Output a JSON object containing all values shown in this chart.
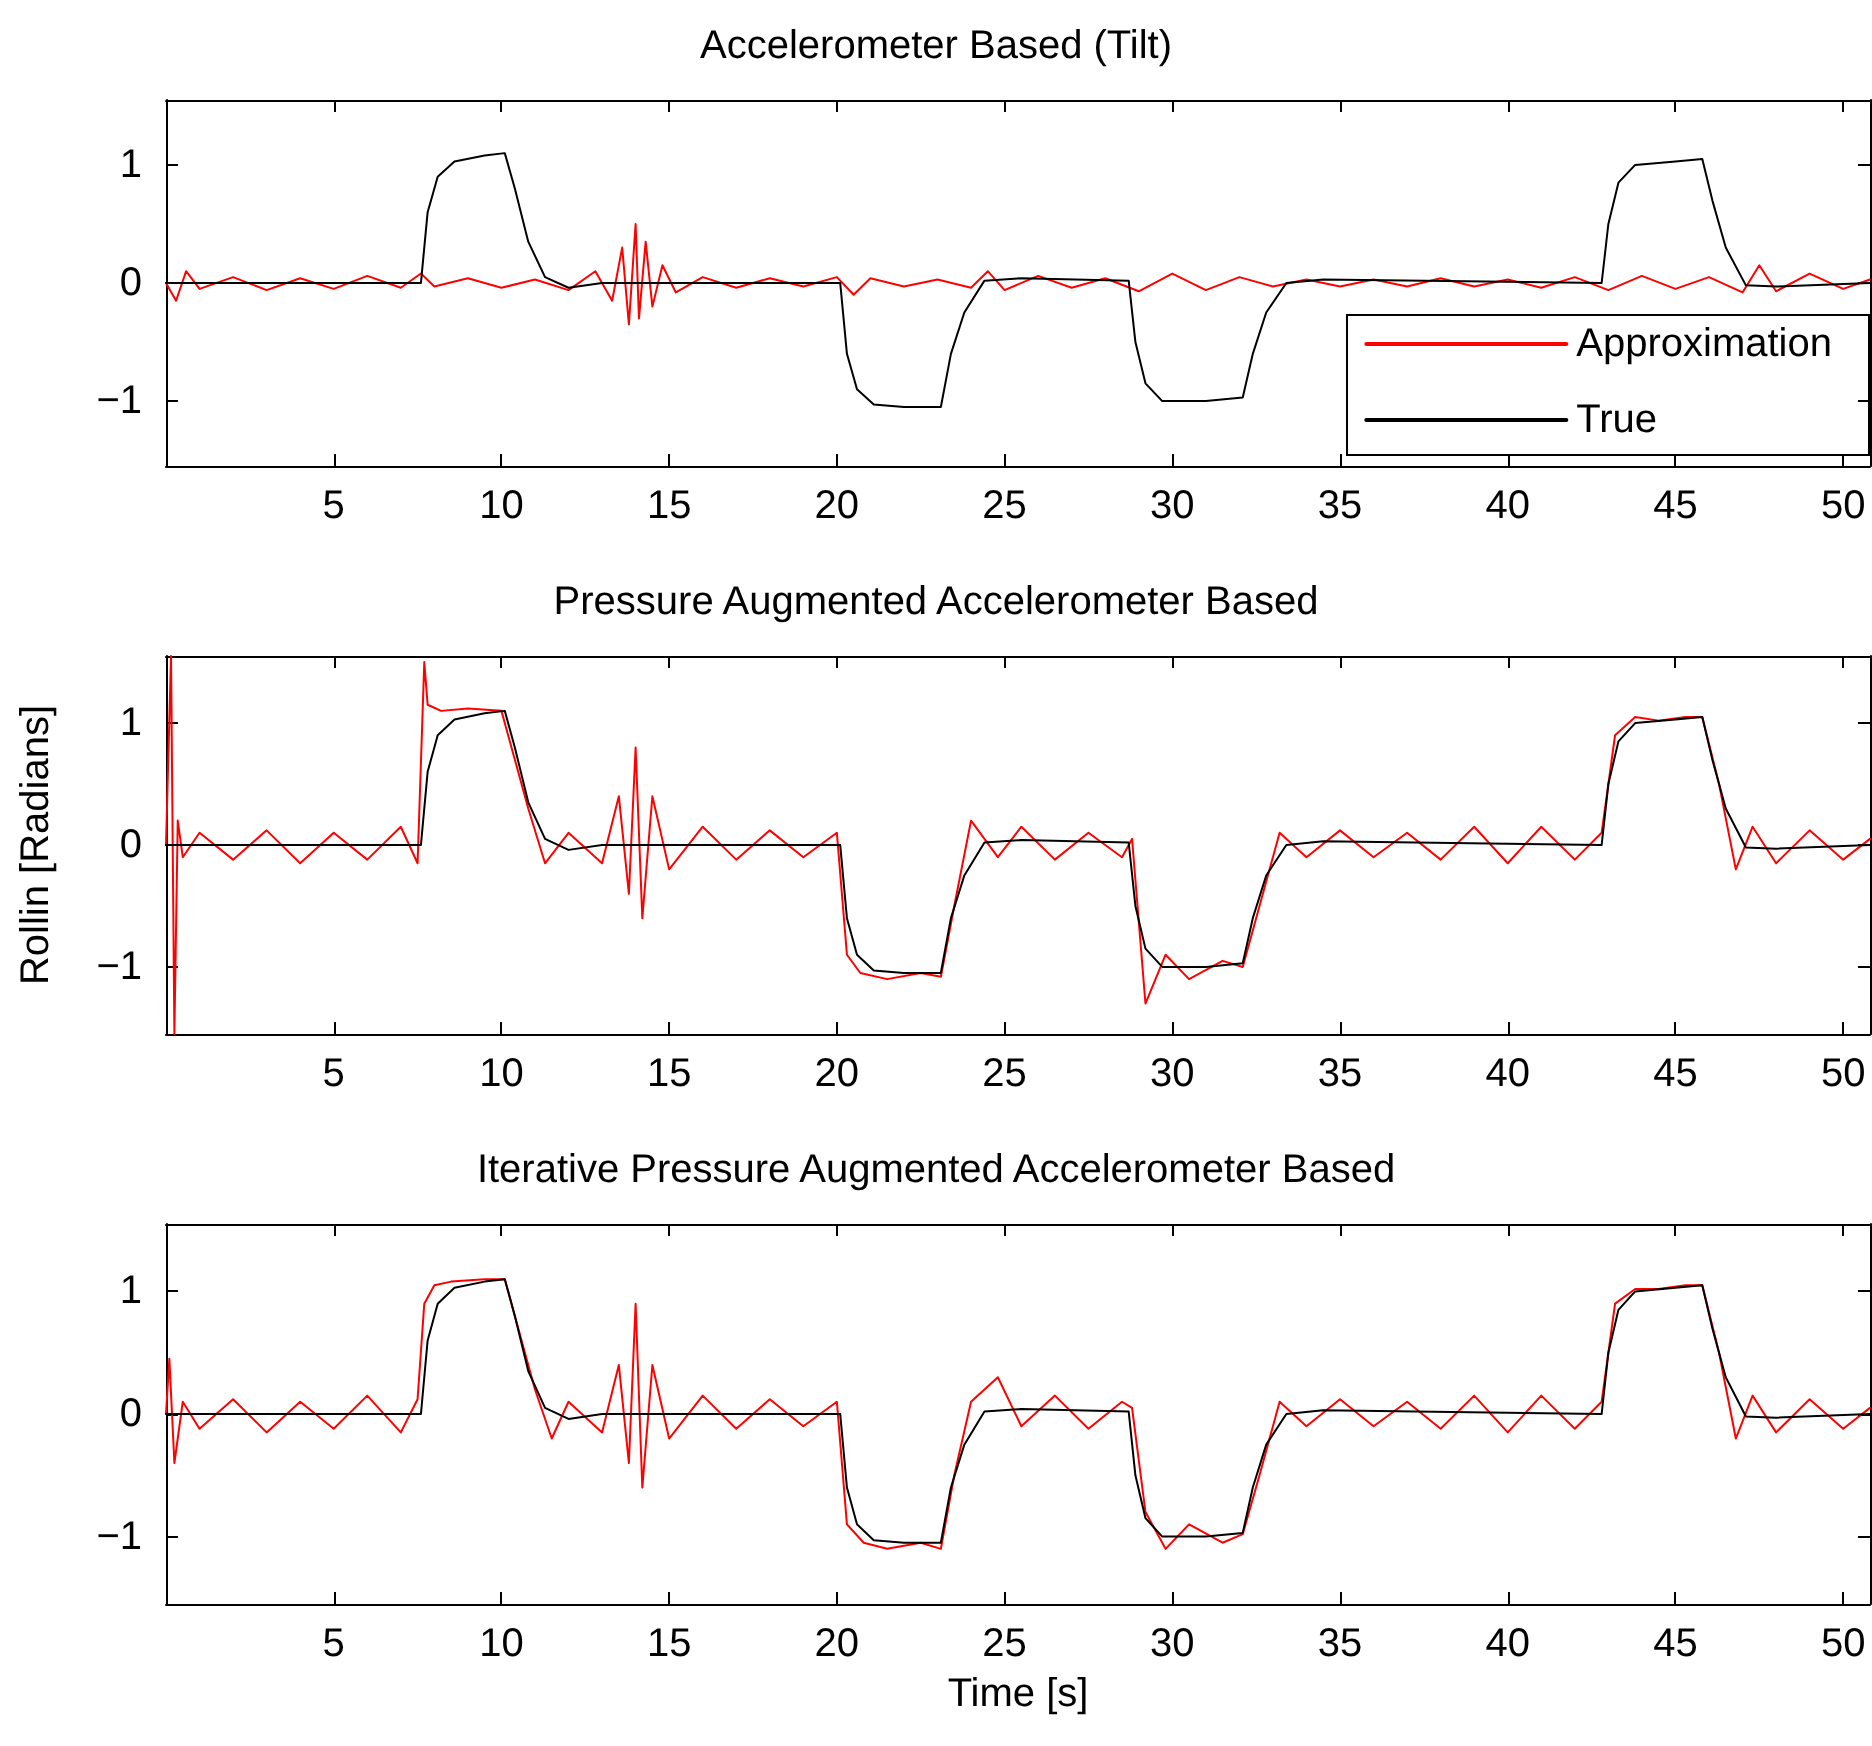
{
  "chart_data": [
    {
      "type": "line",
      "title": "Accelerometer Based (Tilt)",
      "xlim": [
        0,
        50.8
      ],
      "xticks": [
        5,
        10,
        15,
        20,
        25,
        30,
        35,
        40,
        45,
        50
      ],
      "ylim": [
        -1.55,
        1.55
      ],
      "yticks": [
        -1,
        0,
        1
      ],
      "grid": false,
      "legend": "bottom right",
      "marker": "none",
      "line_style": "solid",
      "series": [
        {
          "name": "Approximation",
          "color": "#ff0000",
          "x": [
            0,
            0.3,
            0.6,
            1,
            2,
            3,
            4,
            5,
            6,
            7,
            7.6,
            8,
            9,
            10,
            11,
            12,
            12.8,
            13.3,
            13.6,
            13.8,
            14,
            14.1,
            14.3,
            14.5,
            14.8,
            15.2,
            16,
            17,
            18,
            19,
            20,
            20.5,
            21,
            22,
            23,
            24,
            24.5,
            25,
            26,
            27,
            28,
            29,
            30,
            31,
            32,
            33,
            34,
            35,
            36,
            37,
            38,
            39,
            40,
            41,
            42,
            43,
            44,
            45,
            46,
            47,
            47.5,
            48,
            49,
            50,
            50.8
          ],
          "values": [
            0,
            -0.15,
            0.1,
            -0.05,
            0.05,
            -0.06,
            0.04,
            -0.05,
            0.06,
            -0.04,
            0.08,
            -0.03,
            0.04,
            -0.04,
            0.03,
            -0.06,
            0.1,
            -0.15,
            0.3,
            -0.35,
            0.5,
            -0.3,
            0.35,
            -0.2,
            0.15,
            -0.08,
            0.05,
            -0.04,
            0.04,
            -0.03,
            0.05,
            -0.1,
            0.04,
            -0.03,
            0.03,
            -0.04,
            0.1,
            -0.06,
            0.06,
            -0.04,
            0.04,
            -0.07,
            0.08,
            -0.06,
            0.05,
            -0.03,
            0.03,
            -0.03,
            0.03,
            -0.03,
            0.04,
            -0.03,
            0.03,
            -0.04,
            0.05,
            -0.06,
            0.06,
            -0.05,
            0.05,
            -0.08,
            0.15,
            -0.07,
            0.08,
            -0.05,
            0.03
          ]
        },
        {
          "name": "True",
          "color": "#000000",
          "x": [
            0,
            7.6,
            7.8,
            8.1,
            8.6,
            9.5,
            10.1,
            10.4,
            10.8,
            11.3,
            12,
            13,
            20.1,
            20.3,
            20.6,
            21.1,
            22,
            23.1,
            23.4,
            23.8,
            24.4,
            25.5,
            28.7,
            28.9,
            29.2,
            29.7,
            31,
            32.1,
            32.4,
            32.8,
            33.4,
            34.5,
            42.8,
            43,
            43.3,
            43.8,
            45,
            45.8,
            46.1,
            46.5,
            47.1,
            48,
            50.8
          ],
          "values": [
            0,
            0,
            0.6,
            0.9,
            1.03,
            1.08,
            1.1,
            0.8,
            0.35,
            0.05,
            -0.04,
            0,
            0,
            -0.6,
            -0.9,
            -1.03,
            -1.05,
            -1.05,
            -0.6,
            -0.25,
            0.02,
            0.04,
            0.02,
            -0.5,
            -0.85,
            -1.0,
            -1.0,
            -0.97,
            -0.6,
            -0.25,
            0,
            0.03,
            0,
            0.5,
            0.85,
            1.0,
            1.03,
            1.05,
            0.7,
            0.3,
            -0.02,
            -0.03,
            0
          ]
        }
      ]
    },
    {
      "type": "line",
      "title": "Pressure Augmented Accelerometer Based",
      "ylabel": "Rollin [Radians]",
      "xlim": [
        0,
        50.8
      ],
      "xticks": [
        5,
        10,
        15,
        20,
        25,
        30,
        35,
        40,
        45,
        50
      ],
      "ylim": [
        -1.55,
        1.55
      ],
      "yticks": [
        -1,
        0,
        1
      ],
      "grid": false,
      "marker": "none",
      "line_style": "solid",
      "series": [
        {
          "color": "#ff0000",
          "x": [
            0,
            0.15,
            0.25,
            0.35,
            0.5,
            1,
            2,
            3,
            4,
            5,
            6,
            7,
            7.5,
            7.7,
            7.8,
            8.2,
            9,
            10,
            10.3,
            10.8,
            11.3,
            12,
            13,
            13.5,
            13.8,
            14,
            14.2,
            14.5,
            15,
            16,
            17,
            18,
            19,
            20,
            20.3,
            20.7,
            21.5,
            22.5,
            23.1,
            23.5,
            24,
            24.8,
            25.5,
            26.5,
            27.5,
            28.5,
            28.8,
            29.2,
            29.8,
            30.5,
            31.5,
            32.1,
            32.6,
            33.2,
            34,
            35,
            36,
            37,
            38,
            39,
            40,
            41,
            42,
            42.8,
            43.2,
            43.8,
            44.5,
            45.3,
            45.8,
            46.3,
            46.8,
            47.3,
            48,
            49,
            50,
            50.8
          ],
          "values": [
            0,
            1.55,
            -1.55,
            0.2,
            -0.1,
            0.1,
            -0.12,
            0.12,
            -0.15,
            0.1,
            -0.12,
            0.15,
            -0.15,
            1.5,
            1.15,
            1.1,
            1.12,
            1.1,
            0.8,
            0.3,
            -0.15,
            0.1,
            -0.15,
            0.4,
            -0.4,
            0.8,
            -0.6,
            0.4,
            -0.2,
            0.15,
            -0.12,
            0.12,
            -0.1,
            0.1,
            -0.9,
            -1.05,
            -1.1,
            -1.05,
            -1.08,
            -0.5,
            0.2,
            -0.1,
            0.15,
            -0.12,
            0.1,
            -0.1,
            0.05,
            -1.3,
            -0.9,
            -1.1,
            -0.95,
            -1.0,
            -0.5,
            0.1,
            -0.1,
            0.12,
            -0.1,
            0.1,
            -0.12,
            0.15,
            -0.15,
            0.15,
            -0.12,
            0.1,
            0.9,
            1.05,
            1.02,
            1.05,
            1.05,
            0.5,
            -0.2,
            0.15,
            -0.15,
            0.12,
            -0.12,
            0.05
          ]
        },
        {
          "color": "#000000",
          "x": [
            0,
            7.6,
            7.8,
            8.1,
            8.6,
            9.5,
            10.1,
            10.4,
            10.8,
            11.3,
            12,
            13,
            20.1,
            20.3,
            20.6,
            21.1,
            22,
            23.1,
            23.4,
            23.8,
            24.4,
            25.5,
            28.7,
            28.9,
            29.2,
            29.7,
            31,
            32.1,
            32.4,
            32.8,
            33.4,
            34.5,
            42.8,
            43,
            43.3,
            43.8,
            45,
            45.8,
            46.1,
            46.5,
            47.1,
            48,
            50.8
          ],
          "values": [
            0,
            0,
            0.6,
            0.9,
            1.03,
            1.08,
            1.1,
            0.8,
            0.35,
            0.05,
            -0.04,
            0,
            0,
            -0.6,
            -0.9,
            -1.03,
            -1.05,
            -1.05,
            -0.6,
            -0.25,
            0.02,
            0.04,
            0.02,
            -0.5,
            -0.85,
            -1.0,
            -1.0,
            -0.97,
            -0.6,
            -0.25,
            0,
            0.03,
            0,
            0.5,
            0.85,
            1.0,
            1.03,
            1.05,
            0.7,
            0.3,
            -0.02,
            -0.03,
            0
          ]
        }
      ]
    },
    {
      "type": "line",
      "title": "Iterative Pressure Augmented Accelerometer Based",
      "xlabel": "Time [s]",
      "xlim": [
        0,
        50.8
      ],
      "xticks": [
        5,
        10,
        15,
        20,
        25,
        30,
        35,
        40,
        45,
        50
      ],
      "ylim": [
        -1.55,
        1.55
      ],
      "yticks": [
        -1,
        0,
        1
      ],
      "grid": false,
      "marker": "none",
      "line_style": "solid",
      "series": [
        {
          "color": "#ff0000",
          "x": [
            0,
            0.1,
            0.25,
            0.5,
            1,
            2,
            3,
            4,
            5,
            6,
            7,
            7.5,
            7.7,
            8,
            8.5,
            9.5,
            10.1,
            10.5,
            11,
            11.5,
            12,
            13,
            13.5,
            13.8,
            14,
            14.2,
            14.5,
            15,
            16,
            17,
            18,
            19,
            20,
            20.3,
            20.8,
            21.5,
            22.5,
            23.1,
            23.5,
            24,
            24.8,
            25.5,
            26.5,
            27.5,
            28.5,
            28.8,
            29.2,
            29.8,
            30.5,
            31.5,
            32.1,
            32.6,
            33.2,
            34,
            35,
            36,
            37,
            38,
            39,
            40,
            41,
            42,
            42.8,
            43.2,
            43.8,
            44.5,
            45.3,
            45.8,
            46.3,
            46.8,
            47.3,
            48,
            49,
            50,
            50.8
          ],
          "values": [
            0,
            0.45,
            -0.4,
            0.1,
            -0.12,
            0.12,
            -0.15,
            0.1,
            -0.12,
            0.15,
            -0.15,
            0.12,
            0.9,
            1.05,
            1.08,
            1.1,
            1.1,
            0.7,
            0.2,
            -0.2,
            0.1,
            -0.15,
            0.4,
            -0.4,
            0.9,
            -0.6,
            0.4,
            -0.2,
            0.15,
            -0.12,
            0.12,
            -0.1,
            0.1,
            -0.9,
            -1.05,
            -1.1,
            -1.05,
            -1.1,
            -0.5,
            0.1,
            0.3,
            -0.1,
            0.15,
            -0.12,
            0.1,
            0.05,
            -0.8,
            -1.1,
            -0.9,
            -1.05,
            -0.98,
            -0.5,
            0.1,
            -0.1,
            0.12,
            -0.1,
            0.1,
            -0.12,
            0.15,
            -0.15,
            0.15,
            -0.12,
            0.1,
            0.9,
            1.02,
            1.02,
            1.05,
            1.05,
            0.5,
            -0.2,
            0.15,
            -0.15,
            0.12,
            -0.12,
            0.05
          ]
        },
        {
          "color": "#000000",
          "x": [
            0,
            7.6,
            7.8,
            8.1,
            8.6,
            9.5,
            10.1,
            10.4,
            10.8,
            11.3,
            12,
            13,
            20.1,
            20.3,
            20.6,
            21.1,
            22,
            23.1,
            23.4,
            23.8,
            24.4,
            25.5,
            28.7,
            28.9,
            29.2,
            29.7,
            31,
            32.1,
            32.4,
            32.8,
            33.4,
            34.5,
            42.8,
            43,
            43.3,
            43.8,
            45,
            45.8,
            46.1,
            46.5,
            47.1,
            48,
            50.8
          ],
          "values": [
            0,
            0,
            0.6,
            0.9,
            1.03,
            1.08,
            1.1,
            0.8,
            0.35,
            0.05,
            -0.04,
            0,
            0,
            -0.6,
            -0.9,
            -1.03,
            -1.05,
            -1.05,
            -0.6,
            -0.25,
            0.02,
            0.04,
            0.02,
            -0.5,
            -0.85,
            -1.0,
            -1.0,
            -0.97,
            -0.6,
            -0.25,
            0,
            0.03,
            0,
            0.5,
            0.85,
            1.0,
            1.03,
            1.05,
            0.7,
            0.3,
            -0.02,
            -0.03,
            0
          ]
        }
      ]
    }
  ]
}
